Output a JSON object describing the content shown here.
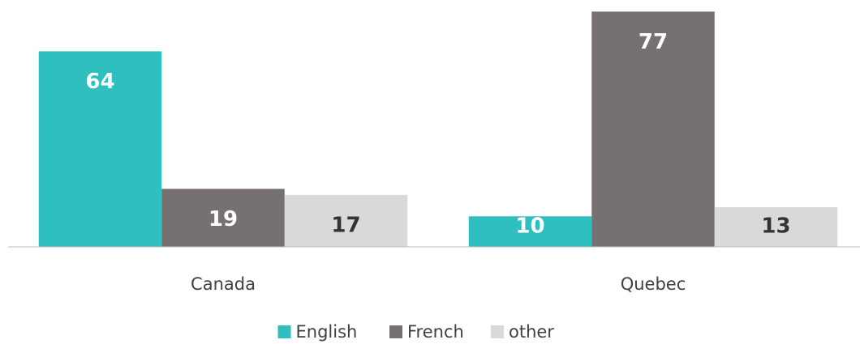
{
  "chart_data": {
    "type": "bar",
    "categories": [
      "Canada",
      "Quebec"
    ],
    "series": [
      {
        "name": "English",
        "color": "#2fbfbf",
        "values": [
          64,
          10
        ]
      },
      {
        "name": "French",
        "color": "#767170",
        "values": [
          19,
          77
        ]
      },
      {
        "name": "other",
        "color": "#d9d9d9",
        "values": [
          17,
          13
        ]
      }
    ],
    "ylim": [
      0,
      80
    ],
    "legend": "bottom"
  }
}
